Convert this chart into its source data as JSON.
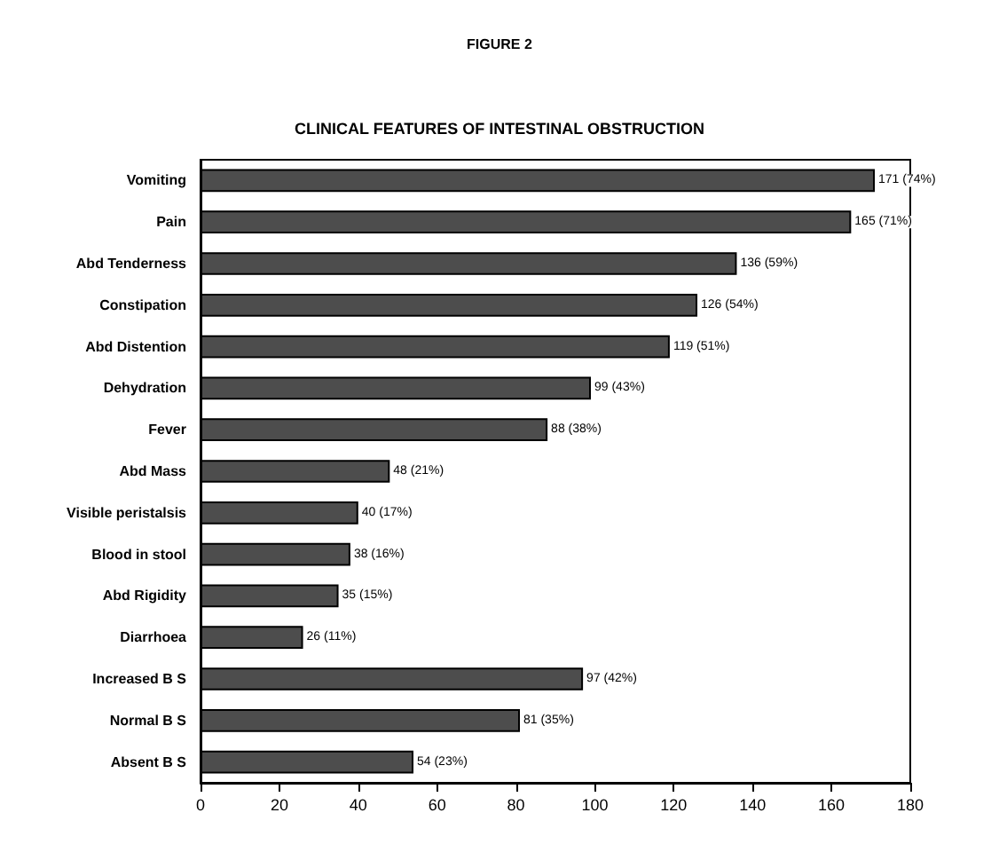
{
  "chart_data": {
    "type": "bar",
    "orientation": "horizontal",
    "title": "FIGURE 2",
    "subtitle": "CLINICAL FEATURES OF INTESTINAL OBSTRUCTION",
    "categories": [
      "Vomiting",
      "Pain",
      "Abd Tenderness",
      "Constipation",
      "Abd Distention",
      "Dehydration",
      "Fever",
      "Abd Mass",
      "Visible peristalsis",
      "Blood in stool",
      "Abd Rigidity",
      "Diarrhoea",
      "Increased B S",
      "Normal B S",
      "Absent B S"
    ],
    "values": [
      171,
      165,
      136,
      126,
      119,
      99,
      88,
      48,
      40,
      38,
      35,
      26,
      97,
      81,
      54
    ],
    "value_labels": [
      "171 (74%)",
      "165 (71%)",
      "136 (59%)",
      "126 (54%)",
      "119 (51%)",
      "99 (43%)",
      "88 (38%)",
      "48 (21%)",
      "40 (17%)",
      "38 (16%)",
      "35 (15%)",
      "26 (11%)",
      "97 (42%)",
      "81 (35%)",
      "54 (23%)"
    ],
    "color": "#4d4d4d",
    "xlim": [
      0,
      180
    ],
    "xticks": [
      0,
      20,
      40,
      60,
      80,
      100,
      120,
      140,
      160,
      180
    ],
    "grid": false
  }
}
